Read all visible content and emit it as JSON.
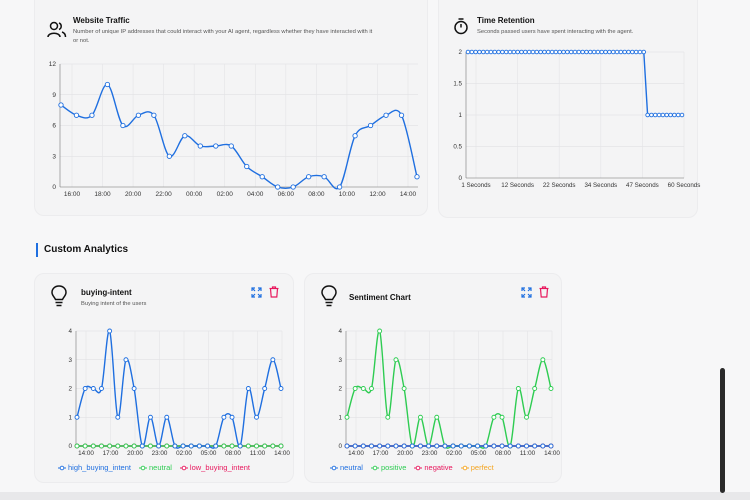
{
  "colors": {
    "blue": "#1f6fe0",
    "green": "#2ecc52",
    "pink": "#e8175d",
    "orange": "#f5a623",
    "danger": "#e8175d"
  },
  "website_traffic": {
    "title": "Website Traffic",
    "description_line1": "Number of unique IP addresses that could interact with your AI agent, regardless whether they have interacted with it",
    "description_line2": "or not.",
    "icon": "users-icon"
  },
  "time_retention": {
    "title": "Time Retention",
    "description": "Seconds passed users have spent interacting with the agent.",
    "icon": "stopwatch-icon"
  },
  "section": {
    "title": "Custom Analytics"
  },
  "buying_intent": {
    "title": "buying-intent",
    "description": "Buying intent of the users",
    "icon": "lightbulb-icon",
    "legend": [
      "high_buying_intent",
      "neutral",
      "low_buying_intent"
    ]
  },
  "sentiment": {
    "title": "Sentiment Chart",
    "icon": "lightbulb-icon",
    "legend": [
      "neutral",
      "positive",
      "negative",
      "perfect"
    ]
  },
  "chart_data": [
    {
      "type": "line",
      "id": "traffic",
      "x_ticks": [
        "16:00",
        "18:00",
        "20:00",
        "22:00",
        "00:00",
        "02:00",
        "04:00",
        "06:00",
        "08:00",
        "10:00",
        "12:00",
        "14:00"
      ],
      "y_ticks": [
        "0",
        "3",
        "6",
        "9",
        "12"
      ],
      "ylim": [
        0,
        12
      ],
      "series": [
        {
          "color": "#1f6fe0",
          "values": [
            8,
            7,
            7,
            10,
            6,
            7,
            7,
            3,
            5,
            4,
            4,
            4,
            2,
            1,
            0,
            0,
            1,
            1,
            0,
            5,
            6,
            7,
            7,
            1
          ]
        }
      ]
    },
    {
      "type": "line",
      "id": "retention",
      "x_ticks": [
        "1 Seconds",
        "12 Seconds",
        "22 Seconds",
        "34 Seconds",
        "47 Seconds",
        "60 Seconds"
      ],
      "y_ticks": [
        "0",
        "0.5",
        "1",
        "1.5",
        "2"
      ],
      "ylim": [
        0,
        2
      ],
      "series": [
        {
          "color": "#1f6fe0",
          "values": [
            2,
            2,
            2,
            2,
            2,
            2,
            2,
            2,
            2,
            2,
            2,
            2,
            2,
            2,
            2,
            2,
            2,
            2,
            2,
            2,
            2,
            2,
            2,
            2,
            2,
            2,
            2,
            2,
            2,
            2,
            2,
            2,
            2,
            2,
            2,
            2,
            2,
            2,
            2,
            2,
            2,
            2,
            2,
            2,
            2,
            2,
            2,
            1,
            1,
            1,
            1,
            1,
            1,
            1,
            1,
            1,
            1
          ]
        }
      ]
    },
    {
      "type": "line",
      "id": "buying",
      "x_ticks": [
        "14:00",
        "17:00",
        "20:00",
        "23:00",
        "02:00",
        "05:00",
        "08:00",
        "11:00",
        "14:00"
      ],
      "y_ticks": [
        "0",
        "1",
        "2",
        "3",
        "4"
      ],
      "ylim": [
        0,
        4
      ],
      "series": [
        {
          "name": "high_buying_intent",
          "color": "#1f6fe0",
          "values": [
            1,
            2,
            2,
            2,
            4,
            1,
            3,
            2,
            0,
            1,
            0,
            1,
            0,
            0,
            0,
            0,
            0,
            0,
            1,
            1,
            0,
            2,
            1,
            2,
            3,
            2
          ]
        },
        {
          "name": "neutral",
          "color": "#2ecc52",
          "values": [
            0,
            0,
            0,
            0,
            0,
            0,
            0,
            0,
            0,
            0,
            0,
            0,
            0,
            0,
            0,
            0,
            0,
            0,
            0,
            0,
            0,
            0,
            0,
            0,
            0,
            0
          ]
        },
        {
          "name": "low_buying_intent",
          "color": "#e8175d",
          "values": [
            0,
            0,
            0,
            0,
            0,
            0,
            0,
            0,
            0,
            0,
            0,
            0,
            0,
            0,
            0,
            0,
            0,
            0,
            0,
            0,
            0,
            0,
            0,
            0,
            0,
            0
          ]
        }
      ]
    },
    {
      "type": "line",
      "id": "sentiment",
      "x_ticks": [
        "14:00",
        "17:00",
        "20:00",
        "23:00",
        "02:00",
        "05:00",
        "08:00",
        "11:00",
        "14:00"
      ],
      "y_ticks": [
        "0",
        "1",
        "2",
        "3",
        "4"
      ],
      "ylim": [
        0,
        4
      ],
      "series": [
        {
          "name": "neutral",
          "color": "#1f6fe0",
          "values": [
            0,
            0,
            0,
            0,
            0,
            0,
            0,
            0,
            0,
            0,
            0,
            0,
            0,
            0,
            0,
            0,
            0,
            0,
            0,
            0,
            0,
            0,
            0,
            0,
            0,
            0
          ]
        },
        {
          "name": "positive",
          "color": "#2ecc52",
          "values": [
            1,
            2,
            2,
            2,
            4,
            1,
            3,
            2,
            0,
            1,
            0,
            1,
            0,
            0,
            0,
            0,
            0,
            0,
            1,
            1,
            0,
            2,
            1,
            2,
            3,
            2
          ]
        },
        {
          "name": "negative",
          "color": "#e8175d",
          "values": [
            0,
            0,
            0,
            0,
            0,
            0,
            0,
            0,
            0,
            0,
            0,
            0,
            0,
            0,
            0,
            0,
            0,
            0,
            0,
            0,
            0,
            0,
            0,
            0,
            0,
            0
          ]
        },
        {
          "name": "perfect",
          "color": "#f5a623",
          "values": [
            0,
            0,
            0,
            0,
            0,
            0,
            0,
            0,
            0,
            0,
            0,
            0,
            0,
            0,
            0,
            0,
            0,
            0,
            0,
            0,
            0,
            0,
            0,
            0,
            0,
            0
          ]
        }
      ]
    }
  ]
}
